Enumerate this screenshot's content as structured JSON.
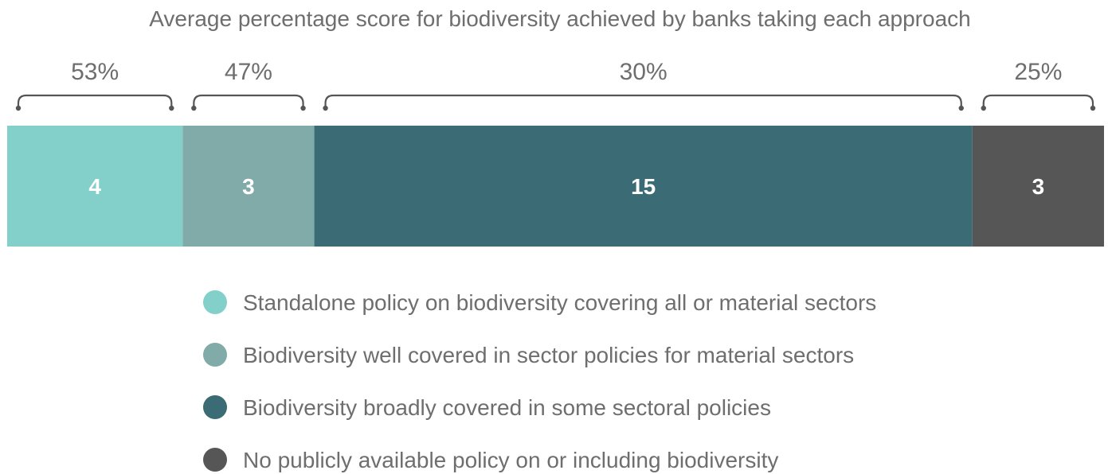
{
  "chart_data": {
    "type": "bar",
    "orientation": "horizontal-stacked",
    "title": "Average percentage score for biodiversity achieved by banks taking each approach",
    "categories": [
      "Standalone policy on biodiversity covering all or material sectors",
      "Biodiversity well covered in sector policies for material sectors",
      "Biodiversity broadly covered in some sectoral policies",
      "No publicly available policy on or including biodiversity"
    ],
    "series": [
      {
        "name": "Number of banks",
        "values": [
          4,
          3,
          15,
          3
        ]
      },
      {
        "name": "Average percentage score",
        "values": [
          "53%",
          "47%",
          "30%",
          "25%"
        ]
      }
    ],
    "colors": [
      "#82d0c9",
      "#80aba8",
      "#3b6b74",
      "#565656"
    ],
    "legend": "bottom-center"
  }
}
